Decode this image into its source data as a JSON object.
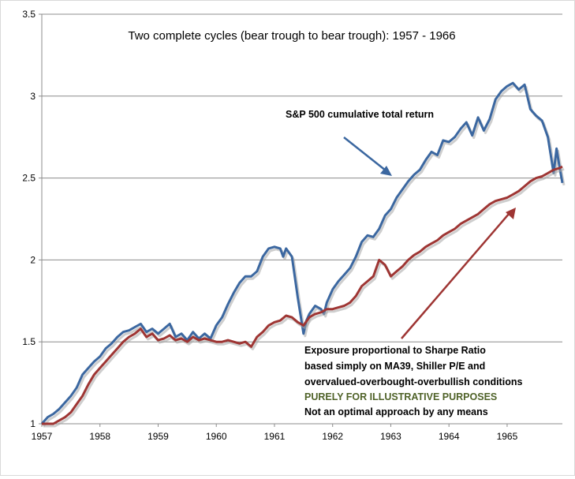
{
  "chart_data": {
    "type": "line",
    "title": "Two complete cycles (bear trough to bear trough): 1957 - 1966",
    "xlabel": "",
    "ylabel": "",
    "xlim": [
      1957,
      1965.95
    ],
    "ylim": [
      1,
      3.5
    ],
    "x_ticks": [
      "1957",
      "1958",
      "1959",
      "1960",
      "1961",
      "1962",
      "1963",
      "1964",
      "1965"
    ],
    "y_ticks": [
      "1",
      "1.5",
      "2",
      "2.5",
      "3",
      "3.5"
    ],
    "grid": "horizontal",
    "series": [
      {
        "name": "S&P 500 cumulative total return",
        "color": "#3b67a0",
        "points": [
          [
            1957.0,
            1.0
          ],
          [
            1957.1,
            1.04
          ],
          [
            1957.2,
            1.06
          ],
          [
            1957.3,
            1.09
          ],
          [
            1957.4,
            1.13
          ],
          [
            1957.5,
            1.17
          ],
          [
            1957.6,
            1.22
          ],
          [
            1957.7,
            1.3
          ],
          [
            1957.8,
            1.34
          ],
          [
            1957.9,
            1.38
          ],
          [
            1958.0,
            1.41
          ],
          [
            1958.1,
            1.46
          ],
          [
            1958.2,
            1.49
          ],
          [
            1958.3,
            1.53
          ],
          [
            1958.4,
            1.56
          ],
          [
            1958.5,
            1.57
          ],
          [
            1958.6,
            1.59
          ],
          [
            1958.7,
            1.61
          ],
          [
            1958.8,
            1.56
          ],
          [
            1958.9,
            1.58
          ],
          [
            1959.0,
            1.55
          ],
          [
            1959.1,
            1.58
          ],
          [
            1959.2,
            1.61
          ],
          [
            1959.3,
            1.53
          ],
          [
            1959.4,
            1.55
          ],
          [
            1959.5,
            1.51
          ],
          [
            1959.6,
            1.56
          ],
          [
            1959.7,
            1.52
          ],
          [
            1959.8,
            1.55
          ],
          [
            1959.9,
            1.52
          ],
          [
            1960.0,
            1.6
          ],
          [
            1960.1,
            1.65
          ],
          [
            1960.2,
            1.73
          ],
          [
            1960.3,
            1.8
          ],
          [
            1960.4,
            1.86
          ],
          [
            1960.5,
            1.9
          ],
          [
            1960.6,
            1.9
          ],
          [
            1960.7,
            1.93
          ],
          [
            1960.8,
            2.02
          ],
          [
            1960.9,
            2.07
          ],
          [
            1961.0,
            2.08
          ],
          [
            1961.1,
            2.07
          ],
          [
            1961.15,
            2.02
          ],
          [
            1961.2,
            2.07
          ],
          [
            1961.3,
            2.02
          ],
          [
            1961.4,
            1.77
          ],
          [
            1961.5,
            1.55
          ],
          [
            1961.55,
            1.63
          ],
          [
            1961.6,
            1.67
          ],
          [
            1961.7,
            1.72
          ],
          [
            1961.8,
            1.7
          ],
          [
            1961.85,
            1.67
          ],
          [
            1961.9,
            1.74
          ],
          [
            1962.0,
            1.82
          ],
          [
            1962.1,
            1.87
          ],
          [
            1962.2,
            1.91
          ],
          [
            1962.3,
            1.95
          ],
          [
            1962.4,
            2.02
          ],
          [
            1962.5,
            2.11
          ],
          [
            1962.6,
            2.15
          ],
          [
            1962.7,
            2.14
          ],
          [
            1962.8,
            2.19
          ],
          [
            1962.9,
            2.27
          ],
          [
            1963.0,
            2.31
          ],
          [
            1963.1,
            2.38
          ],
          [
            1963.2,
            2.43
          ],
          [
            1963.3,
            2.48
          ],
          [
            1963.4,
            2.52
          ],
          [
            1963.5,
            2.55
          ],
          [
            1963.6,
            2.61
          ],
          [
            1963.7,
            2.66
          ],
          [
            1963.8,
            2.64
          ],
          [
            1963.9,
            2.73
          ],
          [
            1964.0,
            2.72
          ],
          [
            1964.1,
            2.75
          ],
          [
            1964.2,
            2.8
          ],
          [
            1964.3,
            2.84
          ],
          [
            1964.4,
            2.76
          ],
          [
            1964.5,
            2.87
          ],
          [
            1964.6,
            2.79
          ],
          [
            1964.7,
            2.86
          ],
          [
            1964.8,
            2.98
          ],
          [
            1964.9,
            3.03
          ],
          [
            1965.0,
            3.06
          ],
          [
            1965.1,
            3.08
          ],
          [
            1965.2,
            3.04
          ],
          [
            1965.3,
            3.07
          ],
          [
            1965.4,
            2.92
          ],
          [
            1965.5,
            2.88
          ],
          [
            1965.6,
            2.85
          ],
          [
            1965.7,
            2.75
          ],
          [
            1965.8,
            2.53
          ],
          [
            1965.85,
            2.68
          ],
          [
            1965.9,
            2.57
          ],
          [
            1965.95,
            2.47
          ]
        ]
      },
      {
        "name": "Exposure proportional to Sharpe Ratio",
        "color": "#9e3533",
        "points": [
          [
            1957.0,
            1.0
          ],
          [
            1957.2,
            1.0
          ],
          [
            1957.3,
            1.02
          ],
          [
            1957.4,
            1.04
          ],
          [
            1957.5,
            1.07
          ],
          [
            1957.6,
            1.12
          ],
          [
            1957.7,
            1.17
          ],
          [
            1957.8,
            1.24
          ],
          [
            1957.9,
            1.3
          ],
          [
            1958.0,
            1.34
          ],
          [
            1958.1,
            1.38
          ],
          [
            1958.2,
            1.42
          ],
          [
            1958.3,
            1.46
          ],
          [
            1958.4,
            1.5
          ],
          [
            1958.5,
            1.53
          ],
          [
            1958.6,
            1.55
          ],
          [
            1958.7,
            1.58
          ],
          [
            1958.8,
            1.53
          ],
          [
            1958.9,
            1.55
          ],
          [
            1959.0,
            1.51
          ],
          [
            1959.1,
            1.52
          ],
          [
            1959.2,
            1.54
          ],
          [
            1959.3,
            1.51
          ],
          [
            1959.4,
            1.52
          ],
          [
            1959.5,
            1.5
          ],
          [
            1959.6,
            1.53
          ],
          [
            1959.7,
            1.51
          ],
          [
            1959.8,
            1.52
          ],
          [
            1959.9,
            1.51
          ],
          [
            1960.0,
            1.5
          ],
          [
            1960.1,
            1.5
          ],
          [
            1960.2,
            1.51
          ],
          [
            1960.3,
            1.5
          ],
          [
            1960.4,
            1.49
          ],
          [
            1960.5,
            1.5
          ],
          [
            1960.6,
            1.47
          ],
          [
            1960.7,
            1.53
          ],
          [
            1960.8,
            1.56
          ],
          [
            1960.9,
            1.6
          ],
          [
            1961.0,
            1.62
          ],
          [
            1961.1,
            1.63
          ],
          [
            1961.2,
            1.66
          ],
          [
            1961.3,
            1.65
          ],
          [
            1961.4,
            1.62
          ],
          [
            1961.5,
            1.6
          ],
          [
            1961.6,
            1.65
          ],
          [
            1961.7,
            1.67
          ],
          [
            1961.8,
            1.68
          ],
          [
            1961.9,
            1.7
          ],
          [
            1962.0,
            1.7
          ],
          [
            1962.1,
            1.71
          ],
          [
            1962.2,
            1.72
          ],
          [
            1962.3,
            1.74
          ],
          [
            1962.4,
            1.78
          ],
          [
            1962.5,
            1.84
          ],
          [
            1962.6,
            1.87
          ],
          [
            1962.7,
            1.9
          ],
          [
            1962.8,
            2.0
          ],
          [
            1962.9,
            1.97
          ],
          [
            1963.0,
            1.9
          ],
          [
            1963.1,
            1.93
          ],
          [
            1963.2,
            1.96
          ],
          [
            1963.3,
            2.0
          ],
          [
            1963.4,
            2.03
          ],
          [
            1963.5,
            2.05
          ],
          [
            1963.6,
            2.08
          ],
          [
            1963.7,
            2.1
          ],
          [
            1963.8,
            2.12
          ],
          [
            1963.9,
            2.15
          ],
          [
            1964.0,
            2.17
          ],
          [
            1964.1,
            2.19
          ],
          [
            1964.2,
            2.22
          ],
          [
            1964.3,
            2.24
          ],
          [
            1964.4,
            2.26
          ],
          [
            1964.5,
            2.28
          ],
          [
            1964.6,
            2.31
          ],
          [
            1964.7,
            2.34
          ],
          [
            1964.8,
            2.36
          ],
          [
            1964.9,
            2.37
          ],
          [
            1965.0,
            2.38
          ],
          [
            1965.1,
            2.4
          ],
          [
            1965.2,
            2.42
          ],
          [
            1965.3,
            2.45
          ],
          [
            1965.4,
            2.48
          ],
          [
            1965.5,
            2.5
          ],
          [
            1965.6,
            2.51
          ],
          [
            1965.7,
            2.53
          ],
          [
            1965.8,
            2.55
          ],
          [
            1965.9,
            2.56
          ],
          [
            1965.95,
            2.57
          ]
        ]
      }
    ],
    "annotations": {
      "sp500_label": "S&P 500 cumulative total return",
      "exposure_lines": [
        "Exposure proportional to Sharpe Ratio",
        "based simply on MA39, Shiller P/E and",
        "overvalued-overbought-overbullish conditions"
      ],
      "illustrative": "PURELY FOR ILLUSTRATIVE PURPOSES",
      "disclaimer": "Not an optimal approach by any means",
      "arrow_color": "#3b67a0",
      "exposure_arrow_color": "#9e3533"
    }
  }
}
